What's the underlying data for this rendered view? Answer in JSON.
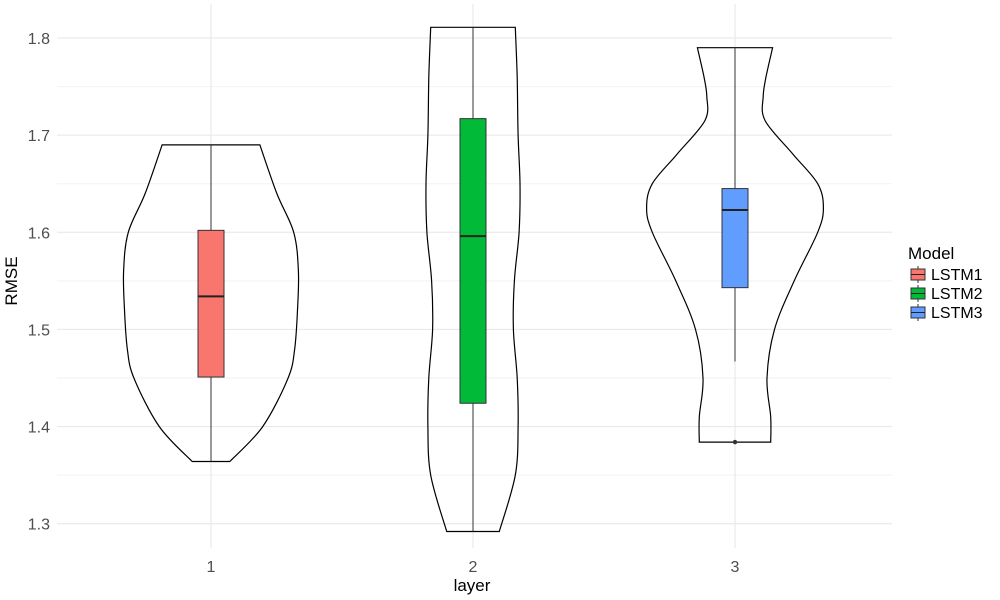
{
  "chart_data": {
    "type": "violin",
    "xlabel": "layer",
    "ylabel": "RMSE",
    "categories": [
      "1",
      "2",
      "3"
    ],
    "ylim": [
      1.275,
      1.835
    ],
    "yticks": [
      1.3,
      1.4,
      1.5,
      1.6,
      1.7,
      1.8
    ],
    "ytick_labels": [
      "1.3",
      "1.4",
      "1.5",
      "1.6",
      "1.7",
      "1.8"
    ],
    "grid": true,
    "legend": {
      "title": "Model",
      "position": "right",
      "entries": [
        {
          "label": "LSTM1",
          "color": "#F8766D"
        },
        {
          "label": "LSTM2",
          "color": "#00BA38"
        },
        {
          "label": "LSTM3",
          "color": "#619CFF"
        }
      ]
    },
    "series": [
      {
        "name": "LSTM1",
        "category": "1",
        "color": "#F8766D",
        "box": {
          "min": 1.364,
          "q1": 1.451,
          "median": 1.534,
          "q3": 1.602,
          "max": 1.69
        },
        "outliers": [],
        "violin_profile": [
          [
            1.364,
            0.2
          ],
          [
            1.4,
            0.55
          ],
          [
            1.45,
            0.82
          ],
          [
            1.48,
            0.89
          ],
          [
            1.52,
            0.92
          ],
          [
            1.56,
            0.93
          ],
          [
            1.6,
            0.88
          ],
          [
            1.64,
            0.7
          ],
          [
            1.69,
            0.52
          ]
        ]
      },
      {
        "name": "LSTM2",
        "category": "2",
        "color": "#00BA38",
        "box": {
          "min": 1.292,
          "q1": 1.424,
          "median": 1.596,
          "q3": 1.717,
          "max": 1.811
        },
        "outliers": [],
        "violin_profile": [
          [
            1.292,
            0.28
          ],
          [
            1.35,
            0.45
          ],
          [
            1.4,
            0.48
          ],
          [
            1.45,
            0.47
          ],
          [
            1.5,
            0.43
          ],
          [
            1.55,
            0.44
          ],
          [
            1.6,
            0.49
          ],
          [
            1.65,
            0.5
          ],
          [
            1.7,
            0.48
          ],
          [
            1.76,
            0.47
          ],
          [
            1.811,
            0.45
          ]
        ]
      },
      {
        "name": "LSTM3",
        "category": "3",
        "color": "#619CFF",
        "box": {
          "min": 1.467,
          "q1": 1.543,
          "median": 1.623,
          "q3": 1.645,
          "max": 1.79
        },
        "outliers": [
          1.384
        ],
        "violin_profile": [
          [
            1.384,
            0.38
          ],
          [
            1.41,
            0.38
          ],
          [
            1.45,
            0.34
          ],
          [
            1.5,
            0.42
          ],
          [
            1.55,
            0.63
          ],
          [
            1.6,
            0.88
          ],
          [
            1.625,
            0.94
          ],
          [
            1.65,
            0.88
          ],
          [
            1.68,
            0.62
          ],
          [
            1.715,
            0.32
          ],
          [
            1.74,
            0.3
          ],
          [
            1.76,
            0.33
          ],
          [
            1.79,
            0.4
          ]
        ]
      }
    ]
  }
}
